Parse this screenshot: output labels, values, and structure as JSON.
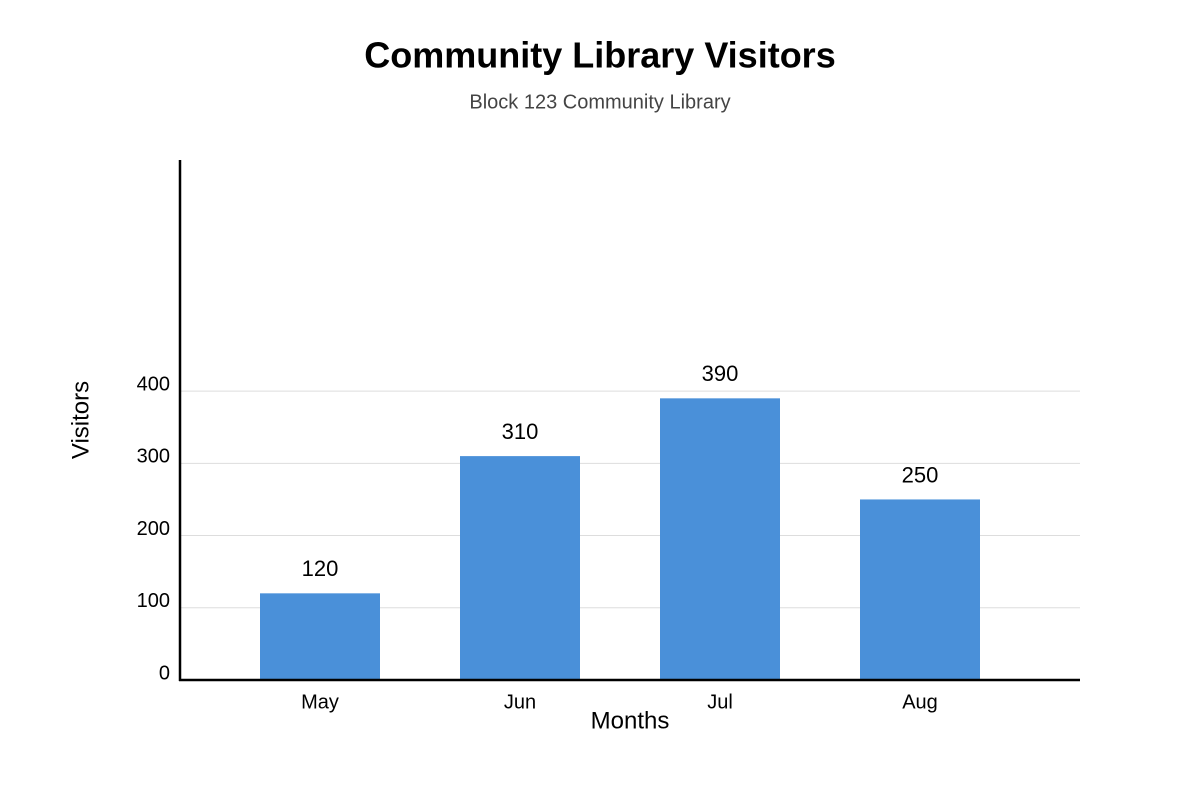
{
  "chart_data": {
    "type": "bar",
    "title": "Community Library Visitors",
    "subtitle": "Block 123 Community Library",
    "x_label": "Months",
    "y_label": "Visitors",
    "categories": [
      "May",
      "Jun",
      "Jul",
      "Aug"
    ],
    "values": [
      120,
      310,
      390,
      250
    ],
    "color": "#4a90d9",
    "ylim": [
      0,
      720
    ],
    "yticks": [
      0,
      100,
      200,
      300,
      400
    ],
    "grid": true
  }
}
